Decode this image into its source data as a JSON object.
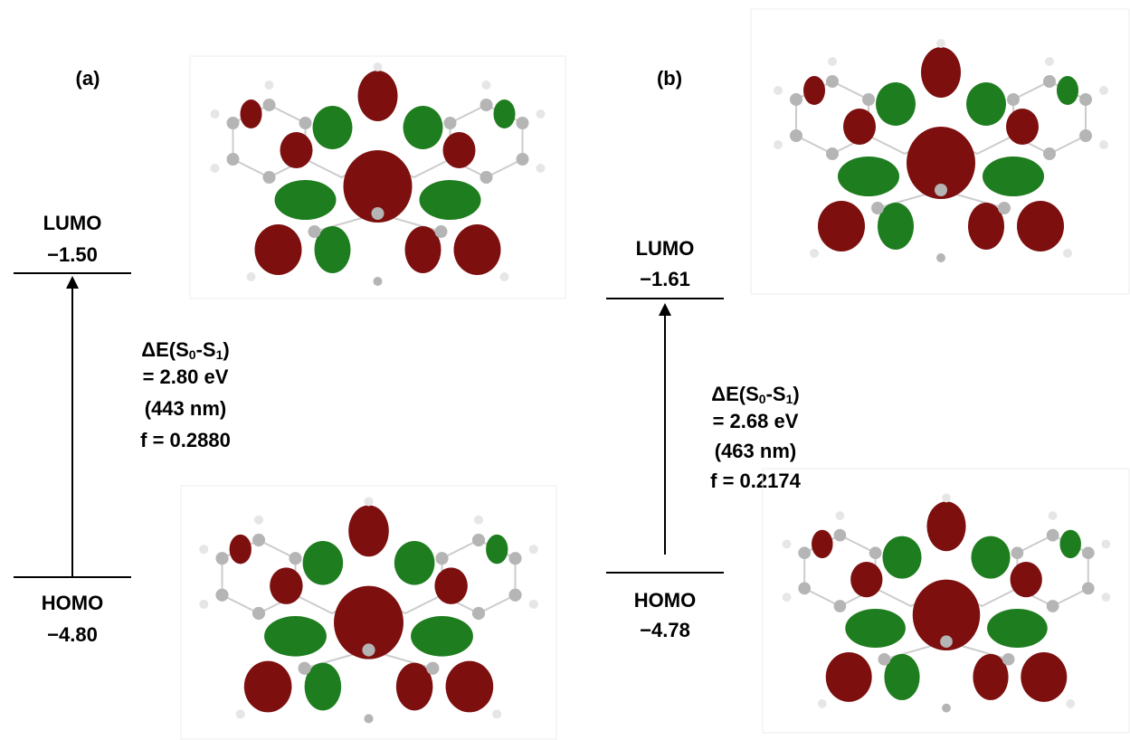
{
  "panels": [
    {
      "label": "(a)",
      "lumo": {
        "title": "LUMO",
        "energy": "−1.50"
      },
      "homo": {
        "title": "HOMO",
        "energy": "−4.80"
      },
      "transition": {
        "delta": [
          "ΔE(S",
          "0",
          "-S",
          "1",
          ")"
        ],
        "energy": "= 2.80 eV",
        "wavelength": "(443 nm)",
        "oscillator": "f = 0.2880"
      }
    },
    {
      "label": "(b)",
      "lumo": {
        "title": "LUMO",
        "energy": "−1.61"
      },
      "homo": {
        "title": "HOMO",
        "energy": "−4.78"
      },
      "transition": {
        "delta": [
          "ΔE(S",
          "0",
          "-S",
          "1",
          ")"
        ],
        "energy": "= 2.68 eV",
        "wavelength": "(463 nm)",
        "oscillator": "f = 0.2174"
      }
    }
  ]
}
